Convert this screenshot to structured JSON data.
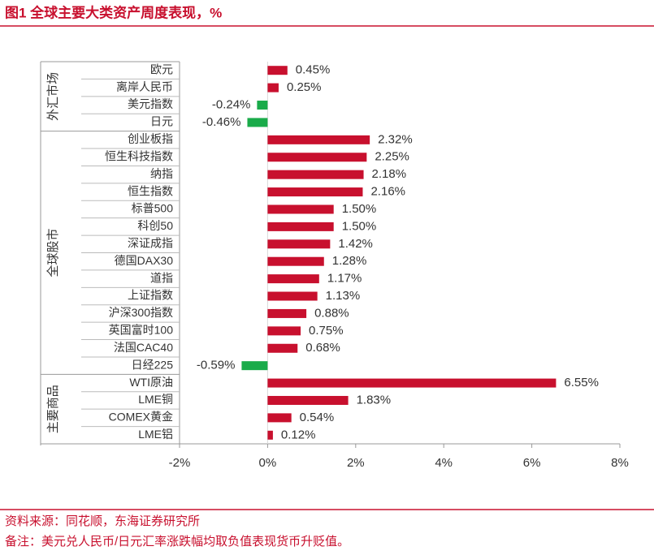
{
  "chart_data": {
    "type": "bar",
    "orientation": "horizontal",
    "title": "图1  全球主要大类资产周度表现，%",
    "source": "资料来源：同花顺，东海证券研究所",
    "note": "备注：美元兑人民币/日元汇率涨跌幅均取负值表现货币升贬值。",
    "color": "#c8102e",
    "negative_color": "#1aab4a",
    "groups": [
      {
        "name": "外汇市场",
        "categories": [
          "欧元",
          "离岸人民币",
          "美元指数",
          "日元"
        ],
        "values": [
          0.45,
          0.25,
          -0.24,
          -0.46
        ],
        "value_labels": [
          "0.45%",
          "0.25%",
          "-0.24%",
          "-0.46%"
        ]
      },
      {
        "name": "全球股市",
        "categories": [
          "创业板指",
          "恒生科技指数",
          "纳指",
          "恒生指数",
          "标普500",
          "科创50",
          "深证成指",
          "德国DAX30",
          "道指",
          "上证指数",
          "沪深300指数",
          "英国富时100",
          "法国CAC40",
          "日经225"
        ],
        "values": [
          2.32,
          2.25,
          2.18,
          2.16,
          1.5,
          1.5,
          1.42,
          1.28,
          1.17,
          1.13,
          0.88,
          0.75,
          0.68,
          -0.59
        ],
        "value_labels": [
          "2.32%",
          "2.25%",
          "2.18%",
          "2.16%",
          "1.50%",
          "1.50%",
          "1.42%",
          "1.28%",
          "1.17%",
          "1.13%",
          "0.88%",
          "0.75%",
          "0.68%",
          "-0.59%"
        ]
      },
      {
        "name": "主要商品",
        "categories": [
          "WTI原油",
          "LME铜",
          "COMEX黄金",
          "LME铝"
        ],
        "values": [
          6.55,
          1.83,
          0.54,
          0.12
        ],
        "value_labels": [
          "6.55%",
          "1.83%",
          "0.54%",
          "0.12%"
        ]
      }
    ],
    "xlim": [
      -2,
      8
    ],
    "xticks": [
      {
        "value": -2,
        "label": "-2%"
      },
      {
        "value": 0,
        "label": "0%"
      },
      {
        "value": 2,
        "label": "2%"
      },
      {
        "value": 4,
        "label": "4%"
      },
      {
        "value": 6,
        "label": "6%"
      },
      {
        "value": 8,
        "label": "8%"
      }
    ]
  }
}
